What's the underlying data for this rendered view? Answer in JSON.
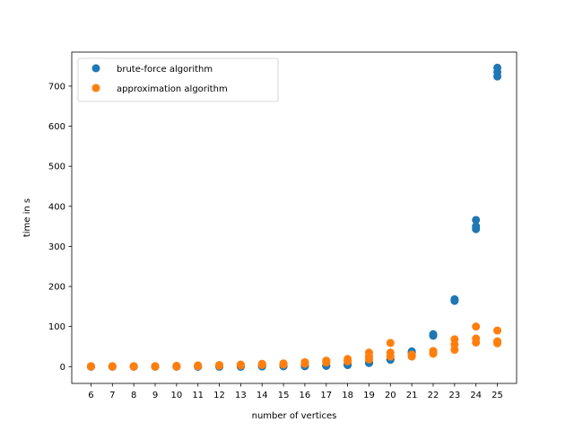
{
  "chart_data": {
    "type": "scatter",
    "xlabel": "number of vertices",
    "ylabel": "time in s",
    "x_ticks": [
      6,
      7,
      8,
      9,
      10,
      11,
      12,
      13,
      14,
      15,
      16,
      17,
      18,
      19,
      20,
      21,
      22,
      23,
      24,
      25
    ],
    "y_ticks": [
      0,
      100,
      200,
      300,
      400,
      500,
      600,
      700
    ],
    "xlim": [
      5.1,
      25.9
    ],
    "ylim": [
      -42,
      785
    ],
    "grid": false,
    "legend_position": "top-left",
    "series": [
      {
        "name": "brute-force algorithm",
        "color": "#1f77b4",
        "points": [
          [
            6,
            0
          ],
          [
            6,
            0
          ],
          [
            6,
            0
          ],
          [
            7,
            0
          ],
          [
            7,
            0
          ],
          [
            7,
            0
          ],
          [
            8,
            0
          ],
          [
            8,
            0
          ],
          [
            8,
            0
          ],
          [
            9,
            0
          ],
          [
            9,
            0
          ],
          [
            9,
            0
          ],
          [
            10,
            0
          ],
          [
            10,
            0
          ],
          [
            10,
            0
          ],
          [
            11,
            0
          ],
          [
            11,
            0
          ],
          [
            11,
            0
          ],
          [
            12,
            0
          ],
          [
            12,
            0
          ],
          [
            12,
            0
          ],
          [
            13,
            0
          ],
          [
            13,
            0
          ],
          [
            13,
            0
          ],
          [
            14,
            0.5
          ],
          [
            14,
            0.5
          ],
          [
            14,
            1
          ],
          [
            15,
            1
          ],
          [
            15,
            1
          ],
          [
            15,
            1
          ],
          [
            16,
            1
          ],
          [
            16,
            1
          ],
          [
            16,
            2
          ],
          [
            17,
            2
          ],
          [
            17,
            2
          ],
          [
            17,
            2
          ],
          [
            18,
            4
          ],
          [
            18,
            4
          ],
          [
            18,
            5
          ],
          [
            19,
            9
          ],
          [
            19,
            9
          ],
          [
            19,
            10
          ],
          [
            20,
            17
          ],
          [
            20,
            18
          ],
          [
            20,
            19
          ],
          [
            21,
            34
          ],
          [
            21,
            36
          ],
          [
            21,
            38
          ],
          [
            22,
            77
          ],
          [
            22,
            79
          ],
          [
            22,
            81
          ],
          [
            23,
            164
          ],
          [
            23,
            166
          ],
          [
            23,
            168
          ],
          [
            24,
            343
          ],
          [
            24,
            350
          ],
          [
            24,
            366
          ],
          [
            25,
            724
          ],
          [
            25,
            735
          ],
          [
            25,
            746
          ]
        ]
      },
      {
        "name": "approximation algorithm",
        "color": "#ff7f0e",
        "points": [
          [
            6,
            0
          ],
          [
            6,
            0.5
          ],
          [
            6,
            1
          ],
          [
            7,
            0
          ],
          [
            7,
            0.5
          ],
          [
            7,
            1
          ],
          [
            8,
            0
          ],
          [
            8,
            0.5
          ],
          [
            8,
            1
          ],
          [
            9,
            0
          ],
          [
            9,
            0.5
          ],
          [
            9,
            1
          ],
          [
            10,
            0
          ],
          [
            10,
            1
          ],
          [
            10,
            2
          ],
          [
            11,
            1
          ],
          [
            11,
            2
          ],
          [
            11,
            3
          ],
          [
            12,
            2
          ],
          [
            12,
            3
          ],
          [
            12,
            4
          ],
          [
            13,
            3
          ],
          [
            13,
            4
          ],
          [
            13,
            5
          ],
          [
            14,
            4
          ],
          [
            14,
            5
          ],
          [
            14,
            7
          ],
          [
            15,
            5
          ],
          [
            15,
            6
          ],
          [
            15,
            8
          ],
          [
            16,
            7
          ],
          [
            16,
            9
          ],
          [
            16,
            11
          ],
          [
            17,
            10
          ],
          [
            17,
            12
          ],
          [
            17,
            15
          ],
          [
            18,
            13
          ],
          [
            18,
            16
          ],
          [
            18,
            19
          ],
          [
            19,
            18
          ],
          [
            19,
            25
          ],
          [
            19,
            35
          ],
          [
            20,
            25
          ],
          [
            20,
            35
          ],
          [
            20,
            59
          ],
          [
            21,
            25
          ],
          [
            21,
            28
          ],
          [
            21,
            30
          ],
          [
            22,
            32
          ],
          [
            22,
            35
          ],
          [
            22,
            39
          ],
          [
            23,
            42
          ],
          [
            23,
            55
          ],
          [
            23,
            68
          ],
          [
            24,
            60
          ],
          [
            24,
            70
          ],
          [
            24,
            100
          ],
          [
            25,
            58
          ],
          [
            25,
            63
          ],
          [
            25,
            90
          ]
        ]
      }
    ]
  }
}
